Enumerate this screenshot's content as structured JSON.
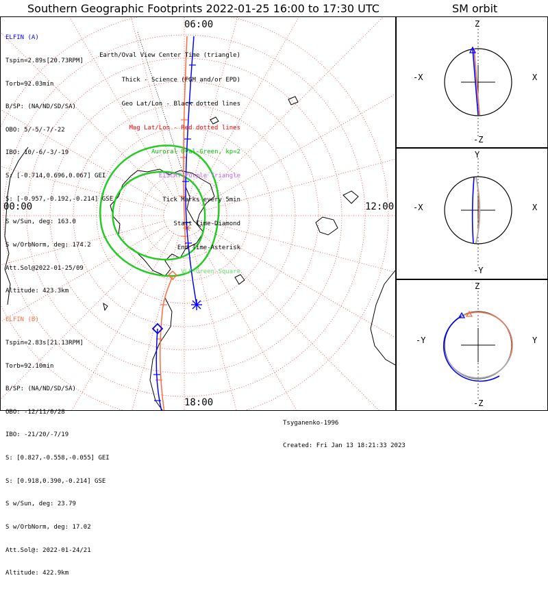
{
  "main_title": "Southern Geographic Footprints 2022-01-25 16:00 to 17:30 UTC",
  "sm_title": "SM orbit",
  "time_labels": {
    "top": "06:00",
    "left": "00:00",
    "right": "12:00",
    "bottom": "18:00"
  },
  "elfin_a": {
    "name": "ELFIN (A)",
    "color": "#0000ff",
    "lines": [
      "Tspin=2.89s[20.73RPM]",
      "Torb=92.03min",
      "B/SP: (NA/ND/SD/SA)",
      "OBO: 5/-5/-7/-22",
      "IBO: 10/-6/-3/-19",
      "S: [-0.714,0.696,0.067] GEI",
      "S: [-0.957,-0.192,-0.214] GSE",
      "S w/Sun, deg: 163.0",
      "S w/OrbNorm, deg: 174.2",
      "Att.Sol@2022-01-25/09",
      "Altitude: 423.3km"
    ]
  },
  "elfin_b": {
    "name": "ELFIN (B)",
    "color": "#ff6a3d",
    "lines": [
      "Tspin=2.83s[21.13RPM]",
      "Torb=92.10min",
      "B/SP: (NA/ND/SD/SA)",
      "OBO: -12/11/0/28",
      "IBO: -21/20/-7/19",
      "S: [0.827,-0.558,-0.055] GEI",
      "S: [0.918,0.390,-0.214] GSE",
      "S w/Sun, deg: 23.79",
      "S w/OrbNorm, deg: 17.02",
      "Att.Sol@: 2022-01-24/21",
      "Altitude: 422.9km"
    ]
  },
  "legend": [
    {
      "text": "Earth/Oval View Center Time (triangle)",
      "color": "#000000"
    },
    {
      "text": "Thick - Science (FGM and/or EPD)",
      "color": "#000000"
    },
    {
      "text": "Geo Lat/Lon - Black dotted lines",
      "color": "#000000"
    },
    {
      "text": "Mag Lat/Lon - Red dotted lines",
      "color": "#ff0000"
    },
    {
      "text": "Auroral Oval-Green, kp=2",
      "color": "#00c000"
    },
    {
      "text": "EISCAT-Purple Triangle",
      "color": "#c060ff"
    },
    {
      "text": "Tick Marks every 5min",
      "color": "#000000"
    },
    {
      "text": "Start Time-Diamond",
      "color": "#000000"
    },
    {
      "text": "End Time-Asterisk",
      "color": "#000000"
    },
    {
      "text": "VLF-Green Square",
      "color": "#66dd66"
    }
  ],
  "credits": [
    "Tsyganenko-1996",
    "Created: Fri Jan 13 18:21:33 2023"
  ],
  "sm_panels": [
    {
      "top": "Z",
      "bottom": "-Z",
      "left": "-X",
      "right": "X"
    },
    {
      "top": "Y",
      "bottom": "-Y",
      "left": "-X",
      "right": "X"
    },
    {
      "top": "Z",
      "bottom": "-Z",
      "left": "-Y",
      "right": "Y"
    }
  ],
  "colors": {
    "mag_grid": "#e04040",
    "oval": "#22cc22",
    "track_a": "#0000ff",
    "track_b": "#ff6a3d"
  }
}
